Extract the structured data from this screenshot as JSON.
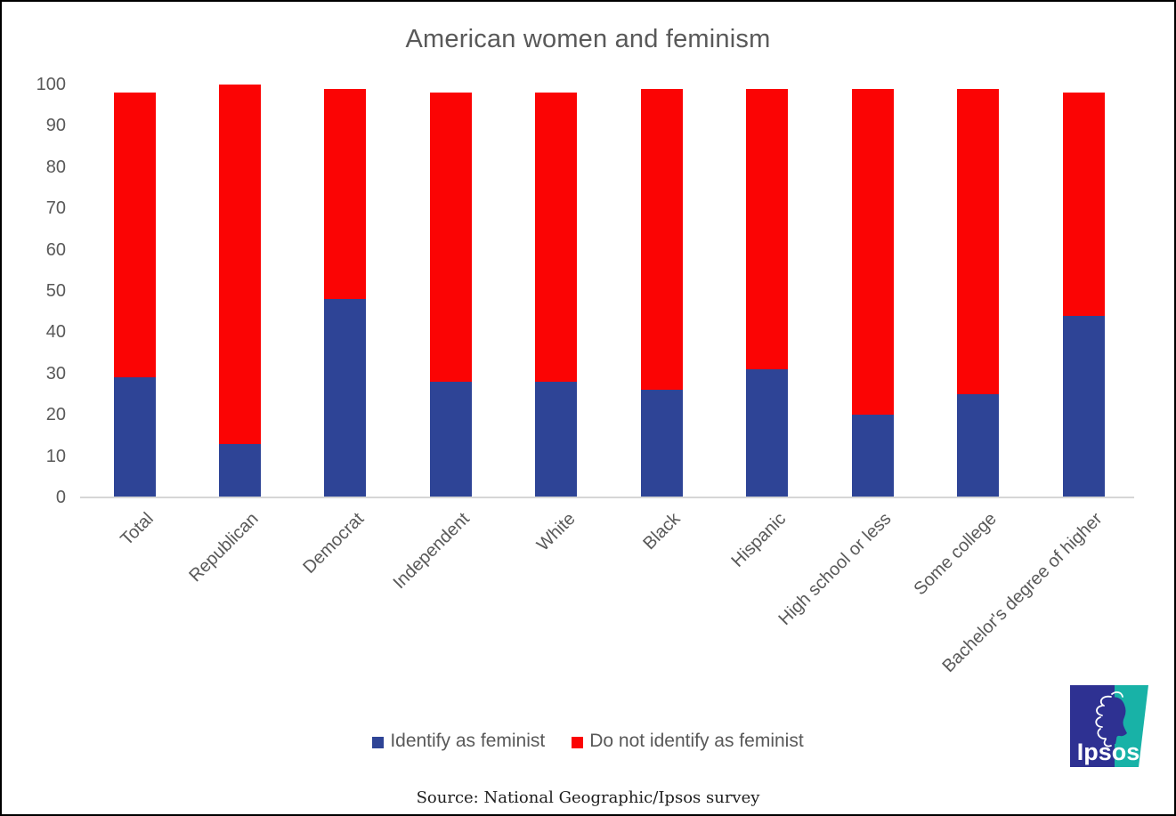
{
  "chart_data": {
    "type": "bar",
    "stacked": true,
    "title": "American women and feminism",
    "categories": [
      "Total",
      "Republican",
      "Democrat",
      "Independent",
      "White",
      "Black",
      "Hispanic",
      "High school or less",
      "Some college",
      "Bachelor's degree of higher"
    ],
    "series": [
      {
        "name": "Identify as feminist",
        "color": "#2E4496",
        "values": [
          29,
          13,
          48,
          28,
          28,
          26,
          31,
          20,
          25,
          44
        ]
      },
      {
        "name": "Do not identify as feminist",
        "color": "#FB0404",
        "values": [
          69,
          87,
          51,
          70,
          70,
          73,
          68,
          79,
          74,
          54
        ]
      }
    ],
    "ylim": [
      0,
      100
    ],
    "yticks": [
      0,
      10,
      20,
      30,
      40,
      50,
      60,
      70,
      80,
      90,
      100
    ],
    "grid": false,
    "legend_position": "bottom",
    "plot_background": "#FFFFFF"
  },
  "footer": {
    "source_text": "Source: National Geographic/Ipsos survey"
  },
  "branding": {
    "logo_text": "Ipsos",
    "logo_blue": "#2E3192",
    "logo_teal": "#18B2A7"
  }
}
